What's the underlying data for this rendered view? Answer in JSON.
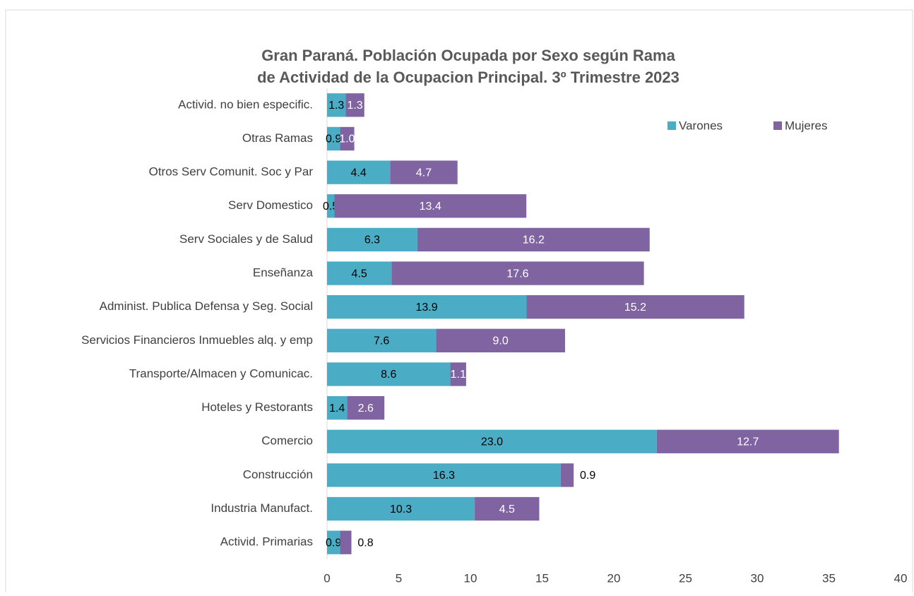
{
  "chart_data": {
    "type": "stacked-bar-horizontal",
    "title": "Gran Paraná. Población Ocupada por Sexo según Rama de Actividad de la Ocupacion Principal. 3º Trimestre 2023",
    "categories": [
      "Activid. no bien especific.",
      "Otras Ramas",
      "Otros Serv Comunit. Soc y Par",
      "Serv Domestico",
      "Serv Sociales y de Salud",
      "Enseñanza",
      "Administ. Publica Defensa y Seg. Social",
      "Servicios Financieros Inmuebles alq. y emp",
      "Transporte/Almacen y Comunicac.",
      "Hoteles y Restorants",
      "Comercio",
      "Construcción",
      "Industria Manufact.",
      "Activid. Primarias"
    ],
    "series": [
      {
        "name": "Varones",
        "color": "#4bacc6",
        "values": [
          1.3,
          0.9,
          4.4,
          0.5,
          6.3,
          4.5,
          13.9,
          7.6,
          8.6,
          1.4,
          23,
          16.3,
          10.3,
          0.9
        ],
        "value_labels": [
          "1.3",
          "0.9",
          "4.4",
          "0.5",
          "6.3",
          "4.5",
          "13.9",
          "7.6",
          "8.6",
          "1.4",
          "23.0",
          "16.3",
          "10.3",
          "0.9"
        ]
      },
      {
        "name": "Mujeres",
        "color": "#8064a2",
        "values": [
          1.3,
          1,
          4.7,
          13.4,
          16.2,
          17.6,
          15.2,
          9,
          1.1,
          2.6,
          12.7,
          0.9,
          4.5,
          0.8
        ],
        "value_labels": [
          "1.3",
          "1.0",
          "4.7",
          "13.4",
          "16.2",
          "17.6",
          "15.2",
          "9.0",
          "1.1",
          "2.6",
          "12.7",
          "0.9",
          "4.5",
          "0.8"
        ]
      }
    ],
    "xlim": [
      0,
      40
    ],
    "xticks": [
      0,
      5,
      10,
      15,
      20,
      25,
      30,
      35,
      40
    ],
    "legend": "top-right"
  }
}
